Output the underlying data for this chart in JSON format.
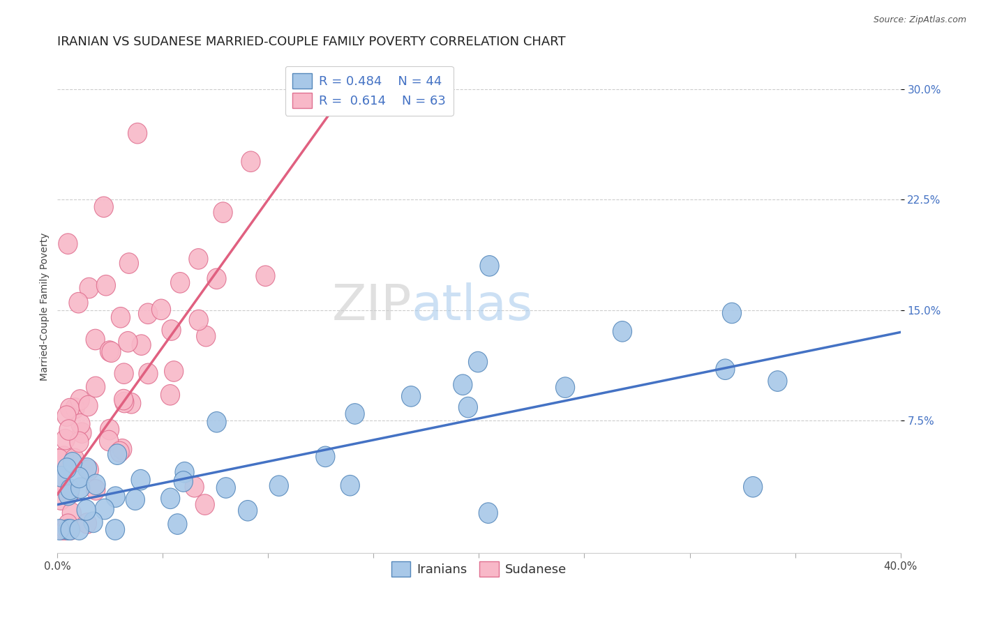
{
  "title": "IRANIAN VS SUDANESE MARRIED-COUPLE FAMILY POVERTY CORRELATION CHART",
  "source": "Source: ZipAtlas.com",
  "ylabel": "Married-Couple Family Poverty",
  "yticks_labels": [
    "7.5%",
    "15.0%",
    "22.5%",
    "30.0%"
  ],
  "ytick_vals": [
    0.075,
    0.15,
    0.225,
    0.3
  ],
  "xmin": 0.0,
  "xmax": 0.4,
  "ymin": -0.015,
  "ymax": 0.32,
  "iranian_color": "#a8c8e8",
  "iranian_edge": "#5588bb",
  "sudanese_color": "#f8b8c8",
  "sudanese_edge": "#e07090",
  "trend_iranian_color": "#4472c4",
  "trend_sudanese_color": "#e06080",
  "R_iranian": 0.484,
  "N_iranian": 44,
  "R_sudanese": 0.614,
  "N_sudanese": 63,
  "background_color": "#ffffff",
  "grid_color": "#cccccc",
  "title_fontsize": 13,
  "axis_label_fontsize": 10,
  "tick_fontsize": 11,
  "legend_fontsize": 13,
  "watermark_zip_color": "#cccccc",
  "watermark_atlas_color": "#aaccee",
  "trend_iran_x0": 0.0,
  "trend_iran_y0": 0.018,
  "trend_iran_x1": 0.4,
  "trend_iran_y1": 0.135,
  "trend_sudan_x0": 0.0,
  "trend_sudan_x1": 0.135,
  "trend_sudan_y0": 0.025,
  "trend_sudan_y1": 0.295
}
